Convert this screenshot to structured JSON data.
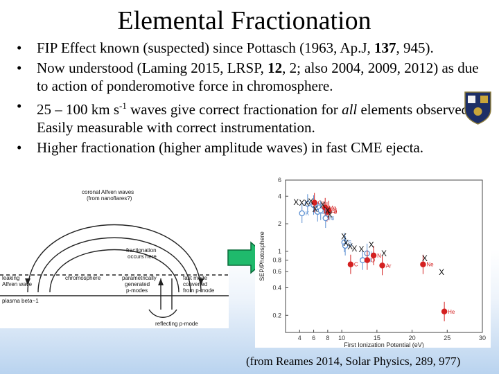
{
  "title": "Elemental Fractionation",
  "bullets": [
    {
      "segments": [
        {
          "t": "FIP Effect known (suspected) since Pottasch (1963, Ap.J, "
        },
        {
          "t": "137",
          "b": true
        },
        {
          "t": ", 945)."
        }
      ]
    },
    {
      "segments": [
        {
          "t": "Now understood (Laming 2015, LRSP, "
        },
        {
          "t": "12",
          "b": true
        },
        {
          "t": ", 2; also 2004, 2009, 2012) as due to action of ponderomotive force in chromosphere."
        }
      ]
    },
    {
      "segments": [
        {
          "t": "25 – 100 km s"
        },
        {
          "t": "-1",
          "sup": true
        },
        {
          "t": " waves give correct fractionation for "
        },
        {
          "t": "all",
          "i": true
        },
        {
          "t": " elements observed. Easily measurable with correct instrumentation."
        }
      ]
    },
    {
      "segments": [
        {
          "t": "Higher fractionation (higher amplitude waves) in fast CME ejecta."
        }
      ]
    }
  ],
  "bullet_glyph": "•",
  "left_diagram": {
    "labels": {
      "top": "coronal Alfven waves",
      "top2": "(from nanoflares?)",
      "frac1": "fractionation",
      "frac2": "occurs here",
      "leak1": "leaking",
      "leak2": "Alfven wave",
      "chromo": "chromosphere",
      "param1": "parametrically",
      "param2": "generated",
      "param3": "p-modes",
      "fast1": "fast mode",
      "fast2": "converted",
      "fast3": "from p-mode",
      "beta": "plasma beta~1",
      "reflect": "reflecting p-mode"
    }
  },
  "chart_data": {
    "type": "scatter",
    "xlabel": "First Ionization Potential (eV)",
    "ylabel": "SEP/Photosphere",
    "xscale": "linear",
    "yscale": "log",
    "xlim": [
      2,
      30
    ],
    "ylim": [
      0.13,
      6
    ],
    "xticks": [
      4,
      6,
      8,
      10,
      15,
      20,
      25,
      30
    ],
    "yticks": [
      0.2,
      0.4,
      0.6,
      0.8,
      1,
      2,
      4,
      6
    ],
    "ytick_labels": [
      "0.2",
      "0.4",
      "0.6",
      "0.8",
      "1",
      "2",
      "4",
      "6"
    ],
    "series": [
      {
        "points": [
          {
            "x": 4.34,
            "y": 2.6,
            "label": "K",
            "color": "#5b8fd1"
          },
          {
            "x": 5.14,
            "y": 3.3,
            "label": "Na",
            "color": "#5b8fd1"
          },
          {
            "x": 5.99,
            "y": 3.2,
            "label": "Al",
            "color": "#5b8fd1"
          },
          {
            "x": 6.11,
            "y": 3.4,
            "label": "Ca",
            "color": "#d42020"
          },
          {
            "x": 6.56,
            "y": 2.7,
            "label": "Sc",
            "color": "#5b8fd1"
          },
          {
            "x": 7.0,
            "y": 2.8,
            "label": "Cr",
            "color": "#5b8fd1"
          },
          {
            "x": 7.64,
            "y": 3.0,
            "label": "Mg",
            "color": "#d42020"
          },
          {
            "x": 7.9,
            "y": 2.7,
            "label": "Fe",
            "color": "#d42020"
          },
          {
            "x": 7.7,
            "y": 2.3,
            "label": "Ni",
            "color": "#5b8fd1"
          },
          {
            "x": 8.15,
            "y": 2.8,
            "label": "Si",
            "color": "#d42020"
          },
          {
            "x": 10.36,
            "y": 1.25,
            "label": "S",
            "color": "#5b8fd1"
          },
          {
            "x": 10.49,
            "y": 1.15,
            "label": "P",
            "color": "#5b8fd1"
          },
          {
            "x": 11.26,
            "y": 0.72,
            "label": "C",
            "color": "#d42020"
          },
          {
            "x": 12.97,
            "y": 0.8,
            "label": "Cl",
            "color": "#5b8fd1"
          },
          {
            "x": 13.6,
            "y": 0.95,
            "label": "H",
            "color": "#5b8fd1"
          },
          {
            "x": 13.62,
            "y": 0.8,
            "label": "O",
            "color": "#d42020"
          },
          {
            "x": 14.53,
            "y": 0.9,
            "label": "N",
            "color": "#d42020"
          },
          {
            "x": 15.76,
            "y": 0.7,
            "label": "Ar",
            "color": "#d42020"
          },
          {
            "x": 21.56,
            "y": 0.72,
            "label": "Ne",
            "color": "#d42020"
          },
          {
            "x": 24.59,
            "y": 0.22,
            "label": "He",
            "color": "#d42020"
          }
        ]
      }
    ],
    "x_markers": [
      {
        "x": 3.5,
        "y": 3.2
      },
      {
        "x": 4.3,
        "y": 3.15
      },
      {
        "x": 5.0,
        "y": 3.15
      },
      {
        "x": 5.6,
        "y": 3.25
      },
      {
        "x": 6.2,
        "y": 2.7
      },
      {
        "x": 7.3,
        "y": 3.0
      },
      {
        "x": 8.0,
        "y": 2.6
      },
      {
        "x": 8.3,
        "y": 2.35
      },
      {
        "x": 10.3,
        "y": 1.35
      },
      {
        "x": 10.6,
        "y": 1.15
      },
      {
        "x": 11.2,
        "y": 1.05
      },
      {
        "x": 11.8,
        "y": 1.0
      },
      {
        "x": 12.8,
        "y": 0.98
      },
      {
        "x": 14.2,
        "y": 1.1
      },
      {
        "x": 16.0,
        "y": 0.88
      },
      {
        "x": 21.8,
        "y": 0.78
      },
      {
        "x": 24.2,
        "y": 0.55
      }
    ],
    "x_marker_glyph": "X"
  },
  "caption": "(from Reames 2014, Solar Physics, 289, 977)",
  "colors": {
    "arrow_fill": "#1fba6c",
    "arrow_stroke": "#0a6a3a",
    "red": "#d42020",
    "blue": "#5b8fd1"
  },
  "crest_icon": "university-crest-icon"
}
